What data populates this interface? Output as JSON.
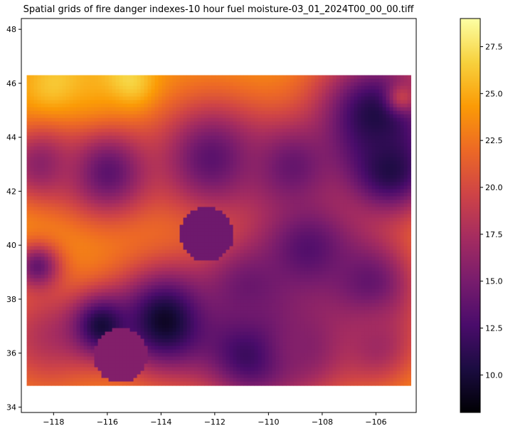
{
  "chart_data": {
    "type": "heatmap",
    "title": "Spatial grids of fire danger indexes-10 hour fuel moisture-03_01_2024T00_00_00.tiff",
    "xlabel": "",
    "ylabel": "",
    "xlim": [
      -119.2,
      -104.5
    ],
    "ylim": [
      33.8,
      48.4
    ],
    "data_extent": {
      "lon": [
        -119.0,
        -104.7
      ],
      "lat": [
        34.8,
        46.3
      ]
    },
    "x_ticks": [
      -118,
      -116,
      -114,
      -112,
      -110,
      -108,
      -106
    ],
    "x_tick_labels": [
      "−118",
      "−116",
      "−114",
      "−112",
      "−110",
      "−108",
      "−106"
    ],
    "y_ticks": [
      34,
      36,
      38,
      40,
      42,
      44,
      46,
      48
    ],
    "y_tick_labels": [
      "34",
      "36",
      "38",
      "40",
      "42",
      "44",
      "46",
      "48"
    ],
    "colormap": "inferno",
    "colormap_stops": [
      "#000004",
      "#1b0c41",
      "#4a0c6b",
      "#781c6d",
      "#a52c60",
      "#cf4446",
      "#ed6925",
      "#fb9b06",
      "#f7d13d",
      "#fcffa4"
    ],
    "value_range": [
      8.0,
      29.0
    ],
    "colorbar_ticks": [
      10.0,
      12.5,
      15.0,
      17.5,
      20.0,
      22.5,
      25.0,
      27.5
    ],
    "colorbar_tick_labels": [
      "10.0",
      "12.5",
      "15.0",
      "17.5",
      "20.0",
      "22.5",
      "25.0",
      "27.5"
    ],
    "field": {
      "base_value": 24.0,
      "features": [
        {
          "lon": -115.3,
          "lat": 45.9,
          "value": 28.5,
          "radius": 0.7
        },
        {
          "lon": -117.8,
          "lat": 45.8,
          "value": 27.0,
          "radius": 0.8
        },
        {
          "lon": -116.5,
          "lat": 44.9,
          "value": 25.5,
          "radius": 1.2
        },
        {
          "lon": -112.1,
          "lat": 43.2,
          "value": 13.5,
          "radius": 1.5
        },
        {
          "lon": -116.0,
          "lat": 42.7,
          "value": 13.5,
          "radius": 1.2
        },
        {
          "lon": -109.2,
          "lat": 42.9,
          "value": 14.5,
          "radius": 1.2
        },
        {
          "lon": -106.0,
          "lat": 44.8,
          "value": 10.5,
          "radius": 1.6
        },
        {
          "lon": -105.5,
          "lat": 42.8,
          "value": 10.5,
          "radius": 1.2
        },
        {
          "lon": -118.5,
          "lat": 43.0,
          "value": 16.0,
          "radius": 1.0
        },
        {
          "lon": -112.3,
          "lat": 40.4,
          "value": 14.5,
          "radius": 1.0,
          "disk": true
        },
        {
          "lon": -115.5,
          "lat": 35.9,
          "value": 15.5,
          "radius": 1.0,
          "disk": true
        },
        {
          "lon": -118.2,
          "lat": 36.6,
          "value": 18.0,
          "radius": 1.4
        },
        {
          "lon": -113.8,
          "lat": 37.2,
          "value": 9.0,
          "radius": 1.4
        },
        {
          "lon": -110.5,
          "lat": 36.2,
          "value": 9.5,
          "radius": 1.4
        },
        {
          "lon": -110.8,
          "lat": 38.3,
          "value": 14.5,
          "radius": 1.3
        },
        {
          "lon": -108.5,
          "lat": 39.8,
          "value": 13.0,
          "radius": 1.5
        },
        {
          "lon": -106.3,
          "lat": 38.5,
          "value": 13.5,
          "radius": 1.3
        },
        {
          "lon": -108.6,
          "lat": 36.3,
          "value": 15.5,
          "radius": 1.3
        },
        {
          "lon": -106.0,
          "lat": 36.3,
          "value": 17.0,
          "radius": 1.1
        },
        {
          "lon": -105.0,
          "lat": 45.5,
          "value": 19.0,
          "radius": 0.4
        },
        {
          "lon": -116.2,
          "lat": 37.0,
          "value": 10.0,
          "radius": 0.8
        },
        {
          "lon": -118.6,
          "lat": 39.2,
          "value": 14.0,
          "radius": 0.6
        }
      ]
    }
  }
}
